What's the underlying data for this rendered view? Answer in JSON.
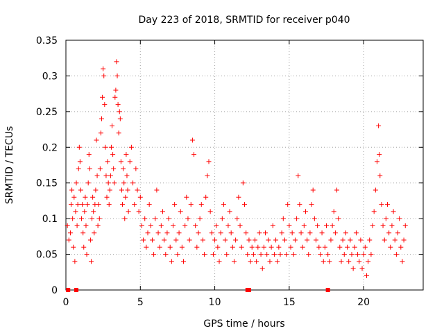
{
  "chart_data": {
    "type": "scatter",
    "title": "Day 223 of 2018, SRMTID for receiver p040",
    "xlabel": "GPS time / hours",
    "ylabel": "SRMTID / TECUs",
    "xlim": [
      0,
      24
    ],
    "ylim": [
      0,
      0.35
    ],
    "x_ticks": [
      0,
      5,
      10,
      15,
      20
    ],
    "x_tick_labels": [
      "0",
      "5",
      "10",
      "15",
      "20"
    ],
    "y_ticks": [
      0,
      0.05,
      0.1,
      0.15,
      0.2,
      0.25,
      0.3,
      0.35
    ],
    "y_tick_labels": [
      "0",
      "0.05",
      "0.1",
      "0.15",
      "0.2",
      "0.25",
      "0.3",
      "0.35"
    ],
    "grid": true,
    "marker_color": "#ff0000",
    "marker": "plus",
    "series": [
      {
        "name": "SRMTID",
        "points": [
          [
            0.1,
            0.09
          ],
          [
            0.2,
            0.07
          ],
          [
            0.3,
            0.08
          ],
          [
            0.35,
            0.12
          ],
          [
            0.4,
            0.14
          ],
          [
            0.45,
            0.1
          ],
          [
            0.5,
            0.06
          ],
          [
            0.55,
            0.13
          ],
          [
            0.6,
            0.04
          ],
          [
            0.65,
            0.11
          ],
          [
            0.7,
            0.15
          ],
          [
            0.75,
            0.09
          ],
          [
            0.8,
            0.12
          ],
          [
            0.85,
            0.17
          ],
          [
            0.9,
            0.2
          ],
          [
            0.95,
            0.18
          ],
          [
            1.0,
            0.14
          ],
          [
            1.05,
            0.1
          ],
          [
            1.1,
            0.12
          ],
          [
            1.15,
            0.08
          ],
          [
            1.2,
            0.06
          ],
          [
            1.25,
            0.11
          ],
          [
            1.3,
            0.13
          ],
          [
            1.35,
            0.09
          ],
          [
            1.4,
            0.05
          ],
          [
            1.45,
            0.12
          ],
          [
            1.5,
            0.15
          ],
          [
            1.55,
            0.19
          ],
          [
            1.6,
            0.17
          ],
          [
            1.65,
            0.07
          ],
          [
            1.7,
            0.04
          ],
          [
            1.75,
            0.1
          ],
          [
            1.8,
            0.13
          ],
          [
            1.85,
            0.11
          ],
          [
            1.9,
            0.08
          ],
          [
            1.95,
            0.12
          ],
          [
            2.0,
            0.14
          ],
          [
            2.05,
            0.21
          ],
          [
            2.1,
            0.16
          ],
          [
            2.15,
            0.09
          ],
          [
            2.2,
            0.12
          ],
          [
            2.25,
            0.1
          ],
          [
            2.3,
            0.17
          ],
          [
            2.35,
            0.22
          ],
          [
            2.4,
            0.24
          ],
          [
            2.45,
            0.27
          ],
          [
            2.5,
            0.31
          ],
          [
            2.55,
            0.3
          ],
          [
            2.6,
            0.26
          ],
          [
            2.65,
            0.2
          ],
          [
            2.7,
            0.16
          ],
          [
            2.75,
            0.13
          ],
          [
            2.8,
            0.18
          ],
          [
            2.85,
            0.15
          ],
          [
            2.9,
            0.12
          ],
          [
            2.95,
            0.14
          ],
          [
            3.0,
            0.16
          ],
          [
            3.05,
            0.2
          ],
          [
            3.1,
            0.23
          ],
          [
            3.15,
            0.19
          ],
          [
            3.2,
            0.17
          ],
          [
            3.25,
            0.15
          ],
          [
            3.3,
            0.27
          ],
          [
            3.35,
            0.28
          ],
          [
            3.4,
            0.32
          ],
          [
            3.45,
            0.3
          ],
          [
            3.5,
            0.26
          ],
          [
            3.55,
            0.22
          ],
          [
            3.6,
            0.25
          ],
          [
            3.65,
            0.24
          ],
          [
            3.7,
            0.18
          ],
          [
            3.75,
            0.14
          ],
          [
            3.8,
            0.12
          ],
          [
            3.85,
            0.17
          ],
          [
            3.9,
            0.15
          ],
          [
            3.95,
            0.1
          ],
          [
            4.0,
            0.13
          ],
          [
            4.05,
            0.19
          ],
          [
            4.1,
            0.16
          ],
          [
            4.15,
            0.14
          ],
          [
            4.2,
            0.11
          ],
          [
            4.3,
            0.18
          ],
          [
            4.4,
            0.2
          ],
          [
            4.5,
            0.15
          ],
          [
            4.6,
            0.12
          ],
          [
            4.7,
            0.17
          ],
          [
            4.8,
            0.14
          ],
          [
            4.9,
            0.11
          ],
          [
            5.0,
            0.13
          ],
          [
            5.1,
            0.09
          ],
          [
            5.2,
            0.07
          ],
          [
            5.3,
            0.1
          ],
          [
            5.4,
            0.06
          ],
          [
            5.5,
            0.08
          ],
          [
            5.6,
            0.12
          ],
          [
            5.7,
            0.09
          ],
          [
            5.8,
            0.07
          ],
          [
            5.9,
            0.05
          ],
          [
            6.0,
            0.1
          ],
          [
            6.1,
            0.14
          ],
          [
            6.2,
            0.08
          ],
          [
            6.3,
            0.06
          ],
          [
            6.4,
            0.09
          ],
          [
            6.5,
            0.11
          ],
          [
            6.6,
            0.07
          ],
          [
            6.7,
            0.05
          ],
          [
            6.8,
            0.08
          ],
          [
            6.9,
            0.1
          ],
          [
            7.0,
            0.06
          ],
          [
            7.1,
            0.04
          ],
          [
            7.2,
            0.09
          ],
          [
            7.3,
            0.12
          ],
          [
            7.4,
            0.07
          ],
          [
            7.5,
            0.05
          ],
          [
            7.6,
            0.08
          ],
          [
            7.7,
            0.11
          ],
          [
            7.8,
            0.06
          ],
          [
            7.9,
            0.04
          ],
          [
            8.0,
            0.09
          ],
          [
            8.1,
            0.13
          ],
          [
            8.2,
            0.1
          ],
          [
            8.3,
            0.07
          ],
          [
            8.4,
            0.12
          ],
          [
            8.5,
            0.21
          ],
          [
            8.6,
            0.19
          ],
          [
            8.7,
            0.09
          ],
          [
            8.8,
            0.06
          ],
          [
            8.9,
            0.08
          ],
          [
            9.0,
            0.1
          ],
          [
            9.1,
            0.12
          ],
          [
            9.2,
            0.07
          ],
          [
            9.3,
            0.05
          ],
          [
            9.4,
            0.13
          ],
          [
            9.5,
            0.16
          ],
          [
            9.6,
            0.18
          ],
          [
            9.7,
            0.11
          ],
          [
            9.8,
            0.08
          ],
          [
            9.9,
            0.05
          ],
          [
            10.0,
            0.07
          ],
          [
            10.1,
            0.09
          ],
          [
            10.2,
            0.06
          ],
          [
            10.3,
            0.04
          ],
          [
            10.4,
            0.08
          ],
          [
            10.5,
            0.1
          ],
          [
            10.6,
            0.12
          ],
          [
            10.7,
            0.07
          ],
          [
            10.8,
            0.05
          ],
          [
            10.9,
            0.09
          ],
          [
            11.0,
            0.11
          ],
          [
            11.1,
            0.08
          ],
          [
            11.2,
            0.06
          ],
          [
            11.3,
            0.04
          ],
          [
            11.4,
            0.07
          ],
          [
            11.5,
            0.1
          ],
          [
            11.6,
            0.13
          ],
          [
            11.7,
            0.09
          ],
          [
            11.8,
            0.06
          ],
          [
            11.9,
            0.15
          ],
          [
            12.0,
            0.12
          ],
          [
            12.1,
            0.08
          ],
          [
            12.2,
            0.05
          ],
          [
            12.3,
            0.07
          ],
          [
            12.4,
            0.04
          ],
          [
            12.5,
            0.06
          ],
          [
            12.6,
            0.05
          ],
          [
            12.7,
            0.07
          ],
          [
            12.8,
            0.04
          ],
          [
            12.9,
            0.06
          ],
          [
            13.0,
            0.08
          ],
          [
            13.1,
            0.05
          ],
          [
            13.2,
            0.03
          ],
          [
            13.3,
            0.06
          ],
          [
            13.4,
            0.08
          ],
          [
            13.5,
            0.05
          ],
          [
            13.6,
            0.07
          ],
          [
            13.7,
            0.04
          ],
          [
            13.8,
            0.06
          ],
          [
            13.9,
            0.09
          ],
          [
            14.0,
            0.05
          ],
          [
            14.1,
            0.07
          ],
          [
            14.2,
            0.04
          ],
          [
            14.3,
            0.06
          ],
          [
            14.4,
            0.05
          ],
          [
            14.5,
            0.08
          ],
          [
            14.6,
            0.1
          ],
          [
            14.7,
            0.07
          ],
          [
            14.8,
            0.05
          ],
          [
            14.9,
            0.12
          ],
          [
            15.0,
            0.09
          ],
          [
            15.1,
            0.06
          ],
          [
            15.2,
            0.08
          ],
          [
            15.3,
            0.05
          ],
          [
            15.4,
            0.07
          ],
          [
            15.5,
            0.1
          ],
          [
            15.6,
            0.16
          ],
          [
            15.7,
            0.12
          ],
          [
            15.8,
            0.08
          ],
          [
            15.9,
            0.06
          ],
          [
            16.0,
            0.09
          ],
          [
            16.1,
            0.11
          ],
          [
            16.2,
            0.07
          ],
          [
            16.3,
            0.05
          ],
          [
            16.4,
            0.08
          ],
          [
            16.5,
            0.12
          ],
          [
            16.6,
            0.14
          ],
          [
            16.7,
            0.1
          ],
          [
            16.8,
            0.07
          ],
          [
            16.9,
            0.09
          ],
          [
            17.0,
            0.06
          ],
          [
            17.1,
            0.05
          ],
          [
            17.2,
            0.08
          ],
          [
            17.3,
            0.04
          ],
          [
            17.4,
            0.06
          ],
          [
            17.5,
            0.09
          ],
          [
            17.6,
            0.05
          ],
          [
            17.7,
            0.04
          ],
          [
            17.8,
            0.07
          ],
          [
            17.9,
            0.09
          ],
          [
            18.0,
            0.11
          ],
          [
            18.1,
            0.08
          ],
          [
            18.2,
            0.14
          ],
          [
            18.3,
            0.1
          ],
          [
            18.4,
            0.06
          ],
          [
            18.5,
            0.04
          ],
          [
            18.6,
            0.07
          ],
          [
            18.7,
            0.05
          ],
          [
            18.8,
            0.08
          ],
          [
            18.9,
            0.06
          ],
          [
            19.0,
            0.04
          ],
          [
            19.1,
            0.07
          ],
          [
            19.2,
            0.05
          ],
          [
            19.3,
            0.03
          ],
          [
            19.4,
            0.06
          ],
          [
            19.5,
            0.08
          ],
          [
            19.6,
            0.05
          ],
          [
            19.7,
            0.04
          ],
          [
            19.8,
            0.07
          ],
          [
            19.9,
            0.03
          ],
          [
            20.0,
            0.05
          ],
          [
            20.1,
            0.06
          ],
          [
            20.2,
            0.02
          ],
          [
            20.3,
            0.04
          ],
          [
            20.4,
            0.07
          ],
          [
            20.5,
            0.05
          ],
          [
            20.6,
            0.09
          ],
          [
            20.7,
            0.11
          ],
          [
            20.8,
            0.14
          ],
          [
            20.9,
            0.18
          ],
          [
            21.0,
            0.23
          ],
          [
            21.05,
            0.19
          ],
          [
            21.1,
            0.16
          ],
          [
            21.2,
            0.12
          ],
          [
            21.3,
            0.09
          ],
          [
            21.4,
            0.07
          ],
          [
            21.5,
            0.1
          ],
          [
            21.6,
            0.12
          ],
          [
            21.7,
            0.08
          ],
          [
            21.8,
            0.06
          ],
          [
            21.9,
            0.09
          ],
          [
            22.0,
            0.11
          ],
          [
            22.1,
            0.07
          ],
          [
            22.2,
            0.05
          ],
          [
            22.3,
            0.08
          ],
          [
            22.4,
            0.1
          ],
          [
            22.5,
            0.06
          ],
          [
            22.6,
            0.04
          ],
          [
            22.7,
            0.07
          ],
          [
            22.8,
            0.09
          ]
        ]
      },
      {
        "name": "zero markers",
        "marker": "square",
        "points": [
          [
            0.15,
            0
          ],
          [
            0.7,
            0
          ],
          [
            12.2,
            0
          ],
          [
            12.3,
            0
          ],
          [
            17.6,
            0
          ]
        ]
      }
    ]
  }
}
